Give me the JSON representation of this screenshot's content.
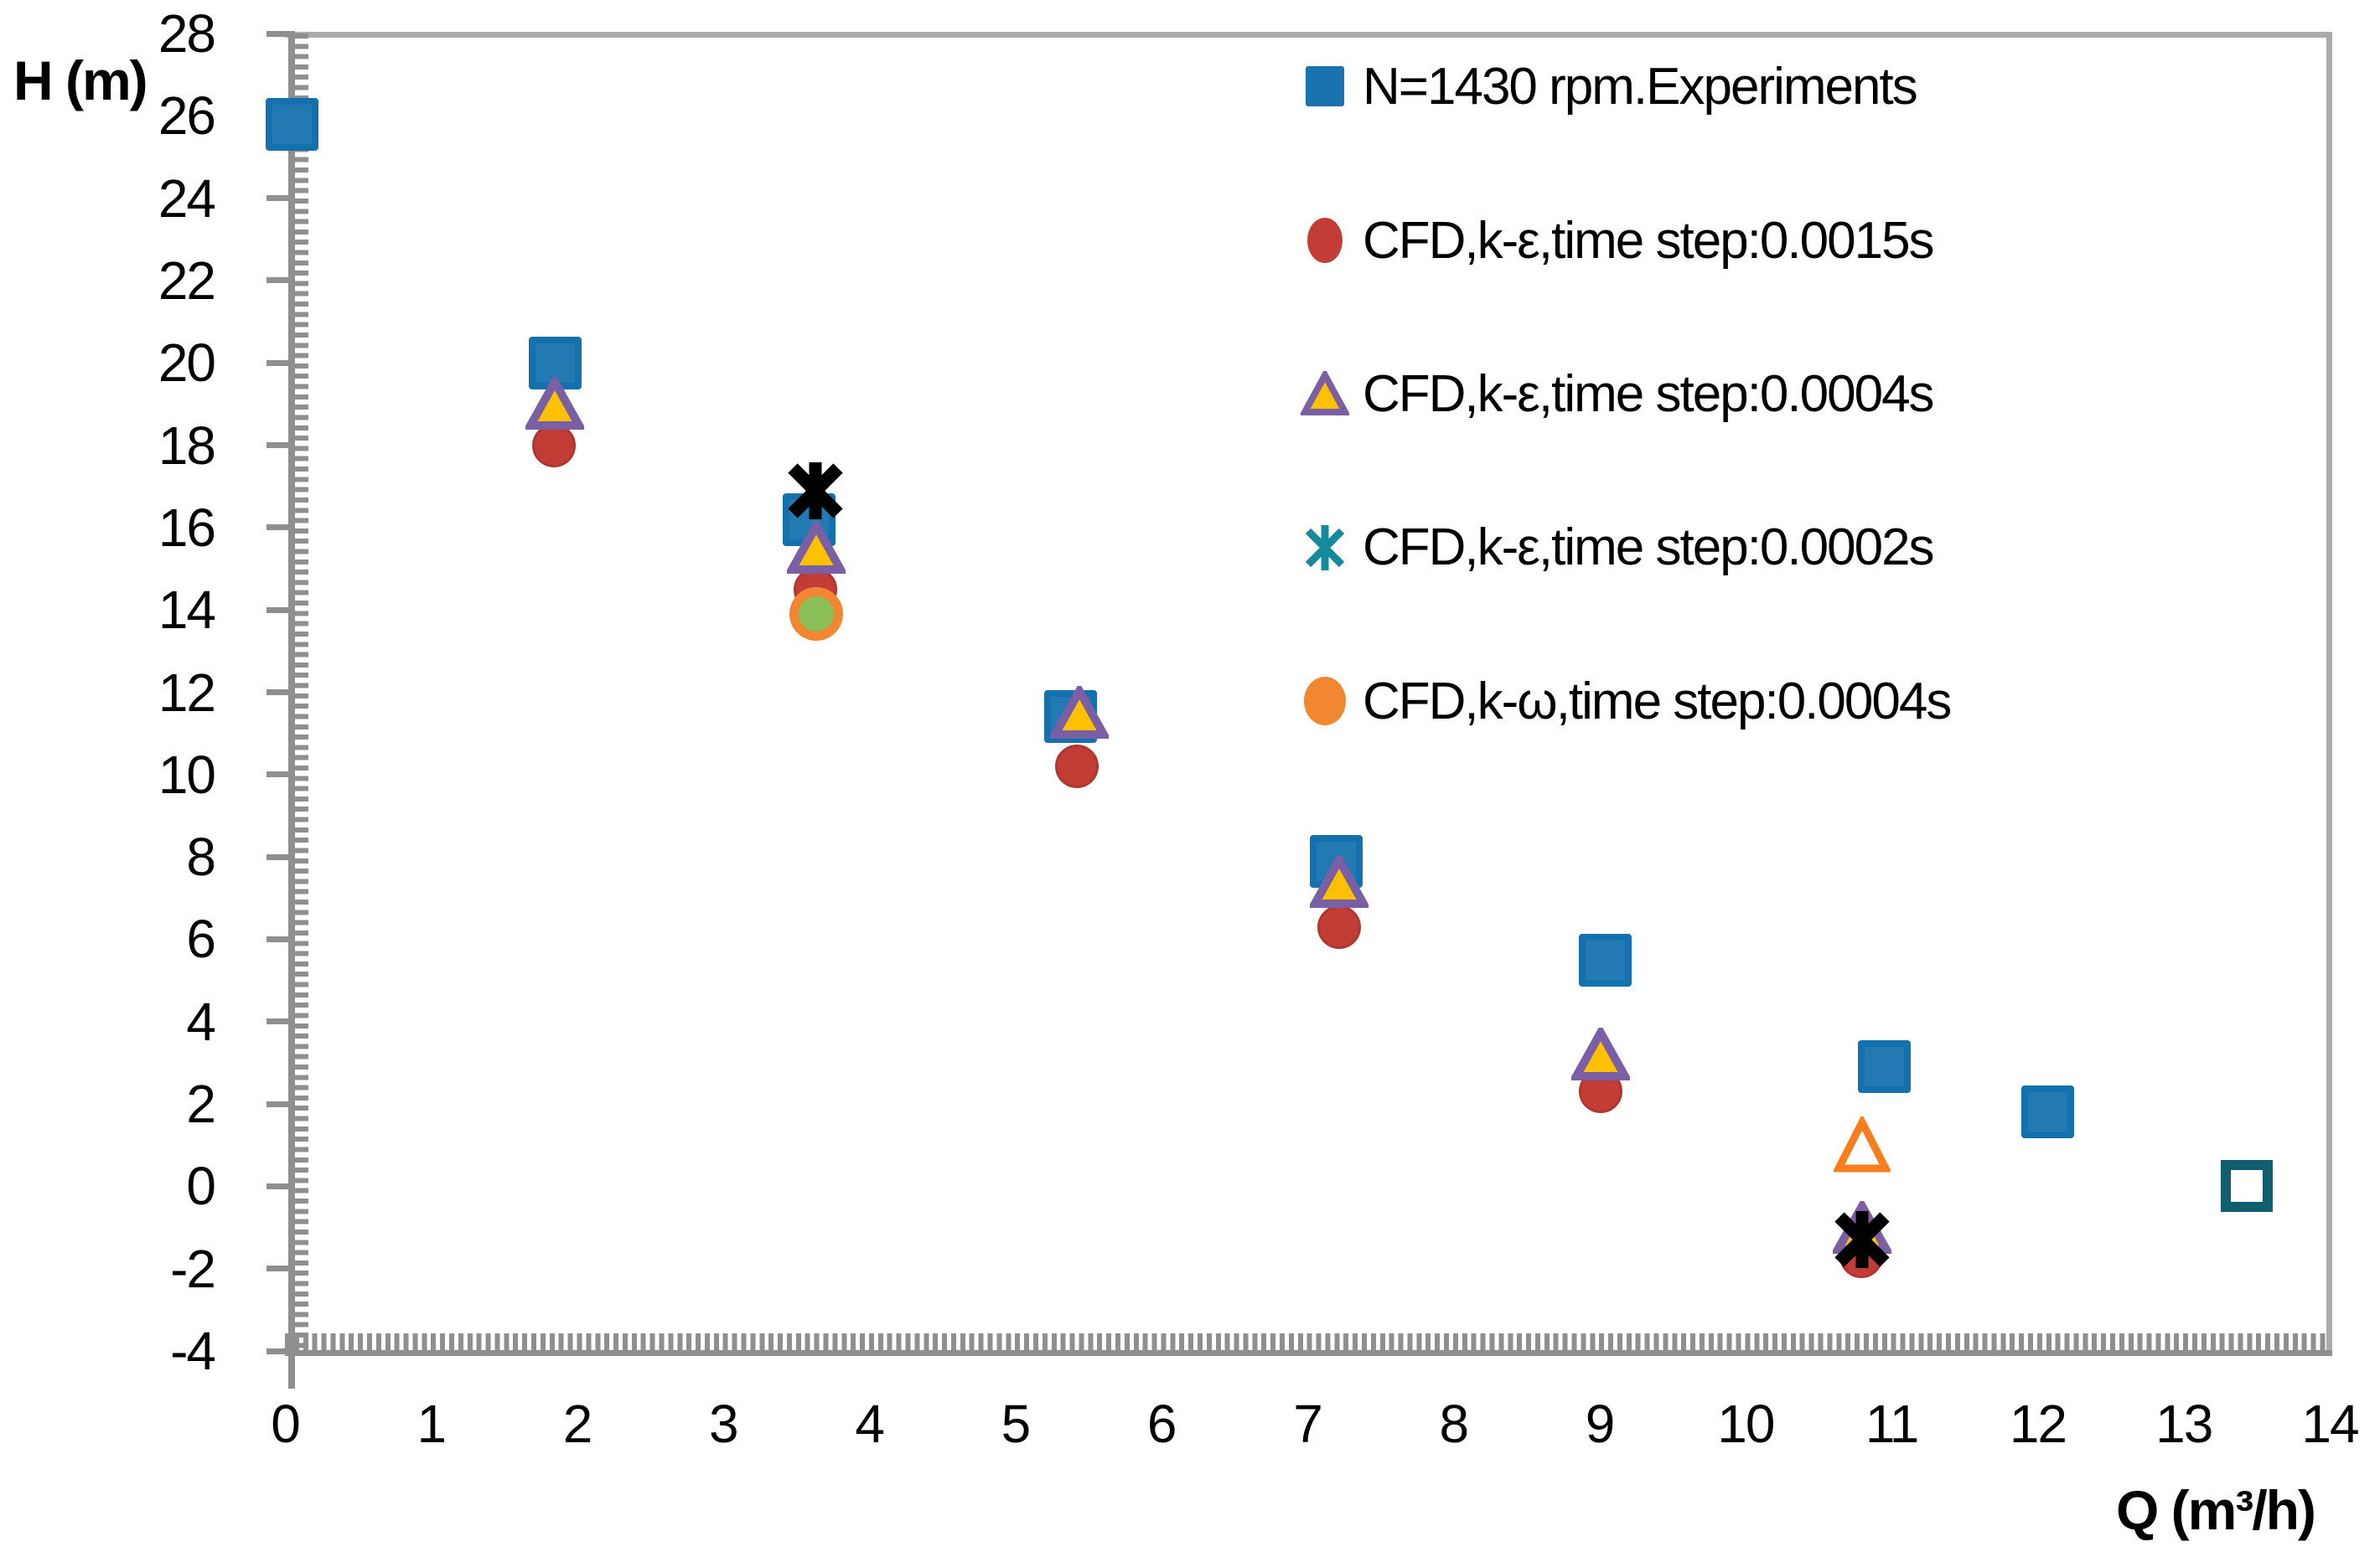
{
  "chart_data": {
    "type": "scatter",
    "title": "",
    "xlabel": "Q (m³/h)",
    "ylabel": "H (m)",
    "xlim": [
      0,
      14
    ],
    "ylim": [
      -4,
      28
    ],
    "x_ticks": [
      0,
      1,
      2,
      3,
      4,
      5,
      6,
      7,
      8,
      9,
      10,
      11,
      12,
      13,
      14
    ],
    "y_ticks": [
      -4,
      -2,
      0,
      2,
      4,
      6,
      8,
      10,
      12,
      14,
      16,
      18,
      20,
      22,
      24,
      26,
      28
    ],
    "grid": false,
    "legend_position": "top-right-inside",
    "axis_color": "#8f8f8f",
    "series": [
      {
        "name": "N=1430 rpm.Experiments",
        "marker": "square",
        "fill": "#2379b2",
        "edge": "#1571ae",
        "points": [
          [
            0.05,
            25.8
          ],
          [
            1.85,
            20.0
          ],
          [
            3.59,
            16.2
          ],
          [
            5.38,
            11.4
          ],
          [
            7.2,
            7.9
          ],
          [
            9.04,
            5.5
          ],
          [
            10.95,
            2.9
          ],
          [
            12.07,
            1.8
          ]
        ]
      },
      {
        "name": "",
        "in_legend": false,
        "marker": "open-square",
        "edge": "#115e6e",
        "points": [
          [
            13.43,
            0.0
          ]
        ]
      },
      {
        "name": "CFD,k-ε,time step:0.0015s",
        "marker": "circle",
        "fill": "#c23d36",
        "edge": "#b1362f",
        "points": [
          [
            1.84,
            18.0
          ],
          [
            3.63,
            14.5
          ],
          [
            5.42,
            10.2
          ],
          [
            7.22,
            6.3
          ],
          [
            9.01,
            2.3
          ],
          [
            10.79,
            -1.7
          ]
        ]
      },
      {
        "name": "CFD,k-ω,time step:0.0004s",
        "in_legend": false,
        "marker": "ring",
        "fill": "#8bbf57",
        "edge": "#f28732",
        "points": [
          [
            3.64,
            13.9
          ]
        ]
      },
      {
        "name": "CFD,k-ε,time step:0.0004s",
        "marker": "triangle",
        "fill": "#ffc000",
        "edge": "#7b5fa5",
        "points": [
          [
            1.85,
            19.0
          ],
          [
            3.64,
            15.5
          ],
          [
            5.44,
            11.5
          ],
          [
            7.22,
            7.4
          ],
          [
            9.01,
            3.2
          ],
          [
            10.8,
            -1.0
          ]
        ]
      },
      {
        "name": "",
        "in_legend": false,
        "marker": "open-triangle",
        "edge": "#f97d1d",
        "points": [
          [
            10.8,
            1.0
          ]
        ]
      },
      {
        "name": "CFD,k-ε,time step:0.0002s",
        "marker": "asterisk",
        "edge": "#000000",
        "points": [
          [
            3.63,
            16.9
          ],
          [
            10.8,
            -1.3
          ]
        ]
      }
    ]
  },
  "legend": {
    "items": [
      {
        "label": "N=1430 rpm.Experiments",
        "marker": "square",
        "fill": "#1a73ae",
        "edge": "#1571ae"
      },
      {
        "label": "CFD,k-ε,time step:0.0015s",
        "marker": "ellipse",
        "fill": "#c23d36",
        "w": 42,
        "h": 54
      },
      {
        "label": "CFD,k-ε,time step:0.0004s",
        "marker": "triangle",
        "fill": "#ffc000",
        "edge": "#7b5fa5"
      },
      {
        "label": "CFD,k-ε,time step:0.0002s",
        "marker": "x6",
        "edge": "#158a9d"
      },
      {
        "label": "CFD,k-ω,time step:0.0004s",
        "marker": "ellipse",
        "fill": "#f28732",
        "w": 50,
        "h": 58
      }
    ]
  }
}
